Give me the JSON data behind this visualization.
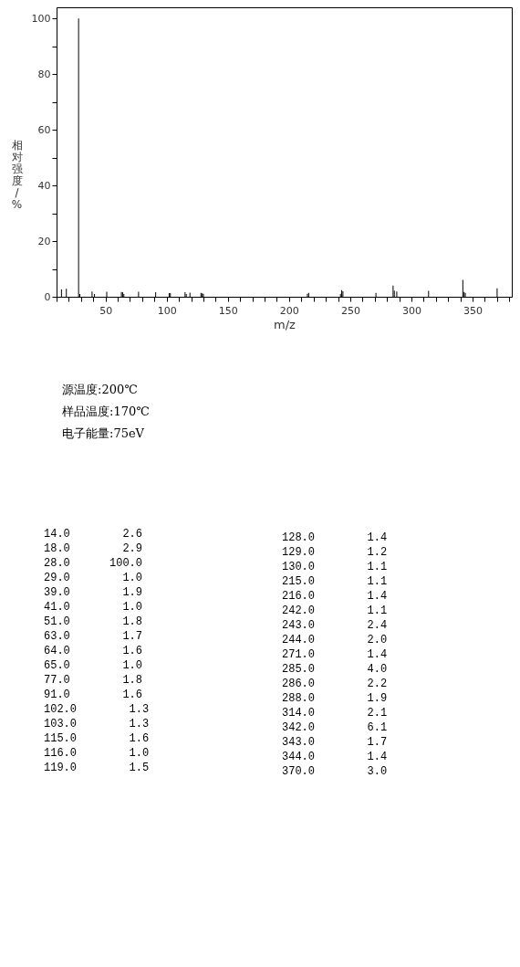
{
  "chart_data": {
    "type": "bar",
    "xlabel": "m/z",
    "ylabel": "相对强度/%",
    "x": [
      14,
      18,
      28,
      29,
      39,
      41,
      51,
      63,
      64,
      65,
      77,
      91,
      102,
      103,
      115,
      116,
      119,
      128,
      129,
      130,
      215,
      216,
      242,
      243,
      244,
      271,
      285,
      286,
      288,
      314,
      342,
      343,
      344,
      370
    ],
    "values": [
      2.6,
      2.9,
      100,
      1.0,
      1.9,
      1.0,
      1.8,
      1.7,
      1.6,
      1.0,
      1.8,
      1.6,
      1.3,
      1.3,
      1.6,
      1.0,
      1.5,
      1.4,
      1.2,
      1.1,
      1.1,
      1.4,
      1.1,
      2.4,
      2.0,
      1.4,
      4.0,
      2.2,
      1.9,
      2.1,
      6.1,
      1.7,
      1.4,
      3.0
    ],
    "color": "#000000",
    "grid": false,
    "xlim": [
      10,
      382
    ],
    "ylim": [
      0,
      104
    ],
    "xticks": [
      {
        "value": 10,
        "label": null
      },
      {
        "value": 20,
        "label": null
      },
      {
        "value": 30,
        "label": null
      },
      {
        "value": 40,
        "label": null
      },
      50,
      {
        "value": 60,
        "label": null
      },
      {
        "value": 70,
        "label": null
      },
      {
        "value": 80,
        "label": null
      },
      {
        "value": 90,
        "label": null
      },
      100,
      {
        "value": 110,
        "label": null
      },
      {
        "value": 120,
        "label": null
      },
      {
        "value": 130,
        "label": null
      },
      {
        "value": 140,
        "label": null
      },
      150,
      {
        "value": 160,
        "label": null
      },
      {
        "value": 170,
        "label": null
      },
      {
        "value": 180,
        "label": null
      },
      {
        "value": 190,
        "label": null
      },
      200,
      {
        "value": 210,
        "label": null
      },
      {
        "value": 220,
        "label": null
      },
      {
        "value": 230,
        "label": null
      },
      {
        "value": 240,
        "label": null
      },
      250,
      {
        "value": 260,
        "label": null
      },
      {
        "value": 270,
        "label": null
      },
      {
        "value": 280,
        "label": null
      },
      {
        "value": 290,
        "label": null
      },
      300,
      {
        "value": 310,
        "label": null
      },
      {
        "value": 320,
        "label": null
      },
      {
        "value": 330,
        "label": null
      },
      {
        "value": 340,
        "label": null
      },
      350,
      {
        "value": 360,
        "label": null
      },
      {
        "value": 370,
        "label": null
      },
      {
        "value": 380,
        "label": null
      }
    ],
    "yticks": [
      0,
      {
        "value": 10,
        "label": null
      },
      20,
      {
        "value": 30,
        "label": null
      },
      40,
      {
        "value": 50,
        "label": null
      },
      60,
      {
        "value": 70,
        "label": null
      },
      80,
      {
        "value": 90,
        "label": null
      },
      100
    ],
    "annotations": [
      "源温度:200℃",
      "样品温度:170℃",
      "电子能量:75eV",
      "14.0        2.6",
      "18.0        2.9",
      "28.0      100.0",
      "29.0        1.0",
      "39.0        1.9",
      "41.0        1.0",
      "51.0        1.8",
      "63.0        1.7",
      "64.0        1.6",
      "65.0        1.0",
      "77.0        1.8",
      "91.0        1.6",
      "102.0        1.3",
      "103.0        1.3",
      "115.0        1.6",
      "116.0        1.0",
      "119.0        1.5",
      "128.0        1.4",
      "129.0        1.2",
      "130.0        1.1",
      "215.0        1.1",
      "216.0        1.4",
      "242.0        1.1",
      "243.0        2.4",
      "244.0        2.0",
      "271.0        1.4",
      "285.0        4.0",
      "286.0        2.2",
      "288.0        1.9",
      "314.0        2.1",
      "342.0        6.1",
      "343.0        1.7",
      "344.0        1.4",
      "370.0        3.0"
    ]
  }
}
